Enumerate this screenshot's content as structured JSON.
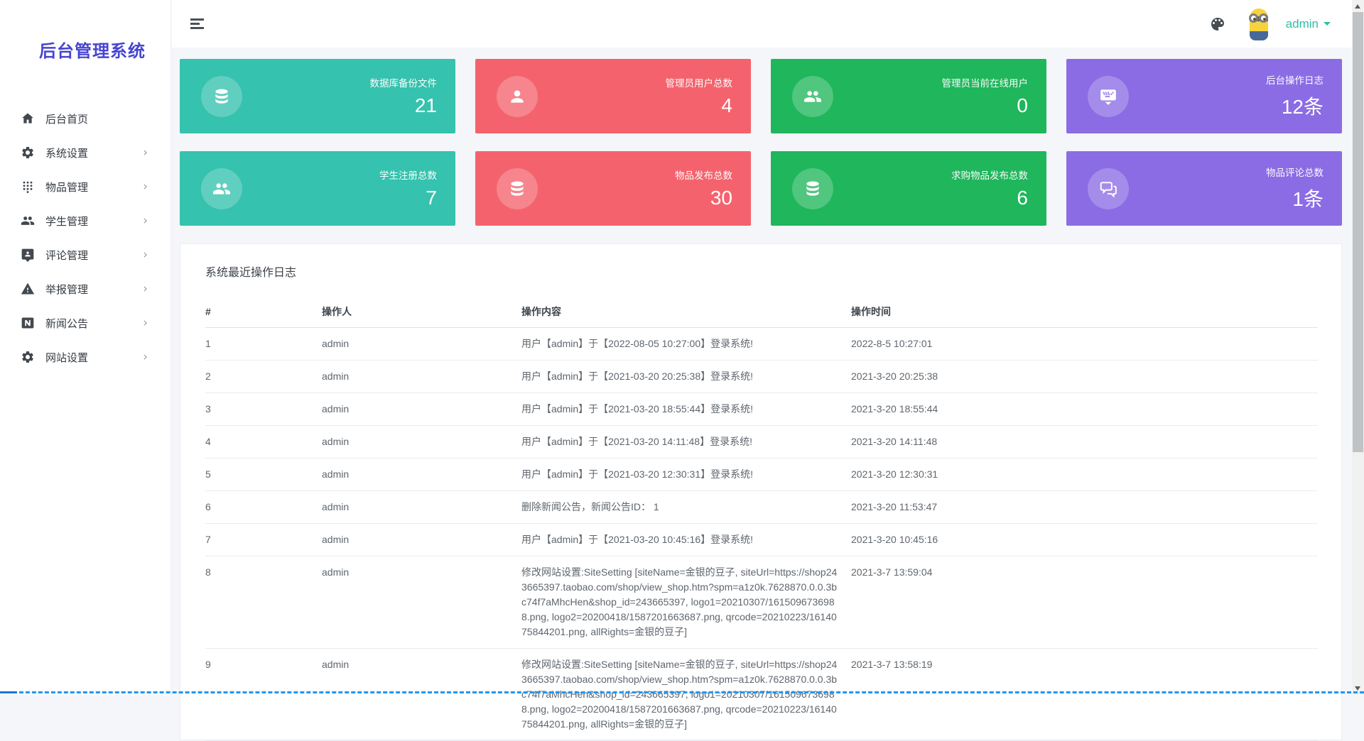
{
  "app": {
    "title": "后台管理系统"
  },
  "header": {
    "username": "admin",
    "theme_icon": "palette-icon",
    "avatar": "minion-avatar"
  },
  "sidebar": {
    "items": [
      {
        "label": "后台首页",
        "icon": "home",
        "chevron": false
      },
      {
        "label": "系统设置",
        "icon": "gear",
        "chevron": true
      },
      {
        "label": "物品管理",
        "icon": "grid",
        "chevron": true
      },
      {
        "label": "学生管理",
        "icon": "group",
        "chevron": true
      },
      {
        "label": "评论管理",
        "icon": "comment",
        "chevron": true
      },
      {
        "label": "举报管理",
        "icon": "warning",
        "chevron": true
      },
      {
        "label": "新闻公告",
        "icon": "news",
        "chevron": true
      },
      {
        "label": "网站设置",
        "icon": "gear",
        "chevron": true
      }
    ]
  },
  "stat_cards": [
    {
      "label": "数据库备份文件",
      "value": "21",
      "color": "#35c2ae",
      "icon": "database"
    },
    {
      "label": "管理员用户总数",
      "value": "4",
      "color": "#f4636d",
      "icon": "person"
    },
    {
      "label": "管理员当前在线用户",
      "value": "0",
      "color": "#1fb65c",
      "icon": "group"
    },
    {
      "label": "后台操作日志",
      "value": "12条",
      "color": "#8b6ce4",
      "icon": "keyboard"
    },
    {
      "label": "学生注册总数",
      "value": "7",
      "color": "#35c2ae",
      "icon": "group"
    },
    {
      "label": "物品发布总数",
      "value": "30",
      "color": "#f4636d",
      "icon": "database"
    },
    {
      "label": "求购物品发布总数",
      "value": "6",
      "color": "#1fb65c",
      "icon": "database"
    },
    {
      "label": "物品评论总数",
      "value": "1条",
      "color": "#8b6ce4",
      "icon": "chat"
    }
  ],
  "log_panel": {
    "title": "系统最近操作日志",
    "table": {
      "headers": [
        "#",
        "操作人",
        "操作内容",
        "操作时间"
      ],
      "rows": [
        [
          "1",
          "admin",
          "用户【admin】于【2022-08-05 10:27:00】登录系统!",
          "2022-8-5 10:27:01"
        ],
        [
          "2",
          "admin",
          "用户【admin】于【2021-03-20 20:25:38】登录系统!",
          "2021-3-20 20:25:38"
        ],
        [
          "3",
          "admin",
          "用户【admin】于【2021-03-20 18:55:44】登录系统!",
          "2021-3-20 18:55:44"
        ],
        [
          "4",
          "admin",
          "用户【admin】于【2021-03-20 14:11:48】登录系统!",
          "2021-3-20 14:11:48"
        ],
        [
          "5",
          "admin",
          "用户【admin】于【2021-03-20 12:30:31】登录系统!",
          "2021-3-20 12:30:31"
        ],
        [
          "6",
          "admin",
          "删除新闻公告，新闻公告ID： 1",
          "2021-3-20 11:53:47"
        ],
        [
          "7",
          "admin",
          "用户【admin】于【2021-03-20 10:45:16】登录系统!",
          "2021-3-20 10:45:16"
        ],
        [
          "8",
          "admin",
          "修改网站设置:SiteSetting [siteName=金银的豆子, siteUrl=https://shop243665397.taobao.com/shop/view_shop.htm?spm=a1z0k.7628870.0.0.3bc74f7aMhcHen&shop_id=243665397, logo1=20210307/1615096736988.png, logo2=20200418/1587201663687.png, qrcode=20210223/1614075844201.png, allRights=金银的豆子]",
          "2021-3-7 13:59:04"
        ],
        [
          "9",
          "admin",
          "修改网站设置:SiteSetting [siteName=金银的豆子, siteUrl=https://shop243665397.taobao.com/shop/view_shop.htm?spm=a1z0k.7628870.0.0.3bc74f7aMhcHen&shop_id=243665397, logo1=20210307/1615096736988.png, logo2=20200418/1587201663687.png, qrcode=20210223/1614075844201.png, allRights=金银的豆子]",
          "2021-3-7 13:58:19"
        ]
      ]
    }
  }
}
